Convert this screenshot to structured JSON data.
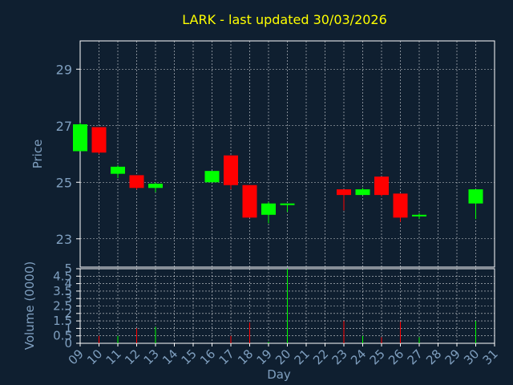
{
  "title": "LARK - last updated 30/03/2026",
  "colors": {
    "background": "#0f1f30",
    "title": "#ffff00",
    "axis_text": "#7f9fbf",
    "up": "#00ff00",
    "down": "#ff0000",
    "grid": "#ffffff",
    "frame": "#ffffff"
  },
  "chart_data": [
    {
      "type": "candlestick",
      "ylabel": "Price",
      "ylim": [
        22,
        30
      ],
      "yticks": [
        23,
        25,
        27,
        29
      ],
      "grid": true,
      "days": [
        "09",
        "10",
        "11",
        "12",
        "13",
        "14",
        "15",
        "16",
        "17",
        "18",
        "19",
        "20",
        "21",
        "22",
        "23",
        "24",
        "25",
        "26",
        "27",
        "28",
        "29",
        "30",
        "31"
      ],
      "candles": [
        {
          "day": "09",
          "open": 26.1,
          "high": 27.1,
          "low": 26.1,
          "close": 27.05
        },
        {
          "day": "10",
          "open": 26.95,
          "high": 26.95,
          "low": 26.0,
          "close": 26.05
        },
        {
          "day": "11",
          "open": 25.3,
          "high": 25.6,
          "low": 25.15,
          "close": 25.55
        },
        {
          "day": "12",
          "open": 25.25,
          "high": 25.25,
          "low": 24.75,
          "close": 24.8
        },
        {
          "day": "13",
          "open": 24.8,
          "high": 25.0,
          "low": 24.65,
          "close": 24.95
        },
        {
          "day": "16",
          "open": 25.0,
          "high": 25.4,
          "low": 25.0,
          "close": 25.4
        },
        {
          "day": "17",
          "open": 25.95,
          "high": 25.95,
          "low": 24.75,
          "close": 24.9
        },
        {
          "day": "18",
          "open": 24.9,
          "high": 24.9,
          "low": 23.75,
          "close": 23.75
        },
        {
          "day": "19",
          "open": 23.85,
          "high": 24.3,
          "low": 23.55,
          "close": 24.25
        },
        {
          "day": "20",
          "open": 24.2,
          "high": 24.25,
          "low": 23.95,
          "close": 24.25
        },
        {
          "day": "23",
          "open": 24.75,
          "high": 24.75,
          "low": 24.0,
          "close": 24.55
        },
        {
          "day": "24",
          "open": 24.55,
          "high": 24.8,
          "low": 24.55,
          "close": 24.75
        },
        {
          "day": "25",
          "open": 25.2,
          "high": 25.2,
          "low": 24.5,
          "close": 24.55
        },
        {
          "day": "26",
          "open": 24.6,
          "high": 24.6,
          "low": 23.6,
          "close": 23.75
        },
        {
          "day": "27",
          "open": 23.8,
          "high": 23.9,
          "low": 23.7,
          "close": 23.85
        },
        {
          "day": "30",
          "open": 24.25,
          "high": 24.75,
          "low": 23.7,
          "close": 24.75
        }
      ]
    },
    {
      "type": "bar",
      "ylabel": "Volume (0000)",
      "xlabel": "Day",
      "ylim": [
        0,
        5
      ],
      "yticks": [
        "0",
        "0.5",
        "1",
        "1.5",
        "2",
        "2.5",
        "3",
        "3.5",
        "4",
        "4.5",
        "5"
      ],
      "grid": true,
      "volumes": [
        {
          "day": "09",
          "value": 0
        },
        {
          "day": "10",
          "value": 0.5
        },
        {
          "day": "11",
          "value": 0.5
        },
        {
          "day": "12",
          "value": 1.0
        },
        {
          "day": "13",
          "value": 1.1
        },
        {
          "day": "16",
          "value": 0
        },
        {
          "day": "17",
          "value": 0.5
        },
        {
          "day": "18",
          "value": 1.4
        },
        {
          "day": "19",
          "value": 0.1
        },
        {
          "day": "20",
          "value": 5.0
        },
        {
          "day": "23",
          "value": 1.5
        },
        {
          "day": "24",
          "value": 0.5
        },
        {
          "day": "25",
          "value": 0.4
        },
        {
          "day": "26",
          "value": 1.45
        },
        {
          "day": "27",
          "value": 0.4
        },
        {
          "day": "30",
          "value": 1.5
        }
      ]
    }
  ]
}
